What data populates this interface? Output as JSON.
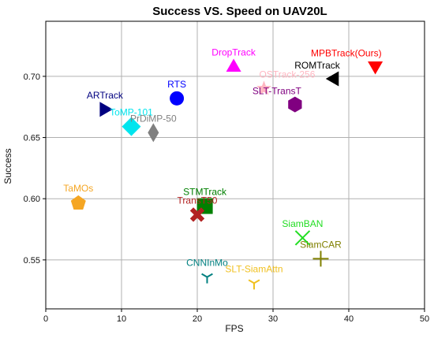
{
  "chart_data": {
    "type": "scatter",
    "title": "Success VS. Speed on UAV20L",
    "xlabel": "FPS",
    "ylabel": "Success",
    "xlim": [
      0,
      50
    ],
    "ylim": [
      0.51,
      0.745
    ],
    "xticks": [
      0,
      10,
      20,
      30,
      40,
      50
    ],
    "yticks": [
      0.55,
      0.6,
      0.65,
      0.7
    ],
    "ytick_labels": [
      "0.55",
      "0.60",
      "0.65",
      "0.70"
    ],
    "grid": true,
    "points": [
      {
        "label": "MPBTrack(Ours)",
        "x": 43.5,
        "y": 0.708,
        "marker": "triangle-down",
        "color": "#ff0000",
        "label_pos": "above-left"
      },
      {
        "label": "ROMTrack",
        "x": 38.0,
        "y": 0.698,
        "marker": "triangle-left",
        "color": "#000000",
        "label_pos": "above-left"
      },
      {
        "label": "DropTrack",
        "x": 24.8,
        "y": 0.708,
        "marker": "triangle-up",
        "color": "#ff00ff",
        "label_pos": "above"
      },
      {
        "label": "OSTrack-256",
        "x": 28.8,
        "y": 0.69,
        "marker": "star",
        "color": "#ffb6c1",
        "label_pos": "above-right"
      },
      {
        "label": "SLT-TransT",
        "x": 32.9,
        "y": 0.677,
        "marker": "hexagon",
        "color": "#800080",
        "label_pos": "above-left"
      },
      {
        "label": "RTS",
        "x": 17.3,
        "y": 0.682,
        "marker": "circle",
        "color": "#0000ff",
        "label_pos": "above"
      },
      {
        "label": "ARTrack",
        "x": 7.8,
        "y": 0.673,
        "marker": "triangle-right",
        "color": "#000080",
        "label_pos": "above"
      },
      {
        "label": "ToMP-101",
        "x": 11.3,
        "y": 0.659,
        "marker": "diamond",
        "color": "#00e5ee",
        "label_pos": "above"
      },
      {
        "label": "PrDiMP-50",
        "x": 14.2,
        "y": 0.654,
        "marker": "thin-diamond",
        "color": "#808080",
        "label_pos": "above"
      },
      {
        "label": "TaMOs",
        "x": 4.3,
        "y": 0.597,
        "marker": "pentagon",
        "color": "#f5a623",
        "label_pos": "above"
      },
      {
        "label": "STMTrack",
        "x": 21.0,
        "y": 0.594,
        "marker": "square",
        "color": "#008000",
        "label_pos": "above"
      },
      {
        "label": "TransT50",
        "x": 20.0,
        "y": 0.587,
        "marker": "plus-filled",
        "color": "#b22222",
        "label_pos": "above"
      },
      {
        "label": "SiamBAN",
        "x": 33.9,
        "y": 0.568,
        "marker": "x",
        "color": "#22dd22",
        "label_pos": "above"
      },
      {
        "label": "SiamCAR",
        "x": 36.3,
        "y": 0.551,
        "marker": "plus",
        "color": "#808000",
        "label_pos": "above"
      },
      {
        "label": "CNNInMo",
        "x": 21.3,
        "y": 0.536,
        "marker": "tri-down",
        "color": "#008080",
        "label_pos": "above"
      },
      {
        "label": "SLT-SiamAttn",
        "x": 27.5,
        "y": 0.531,
        "marker": "tri-down",
        "color": "#f0c020",
        "label_pos": "above"
      }
    ]
  }
}
